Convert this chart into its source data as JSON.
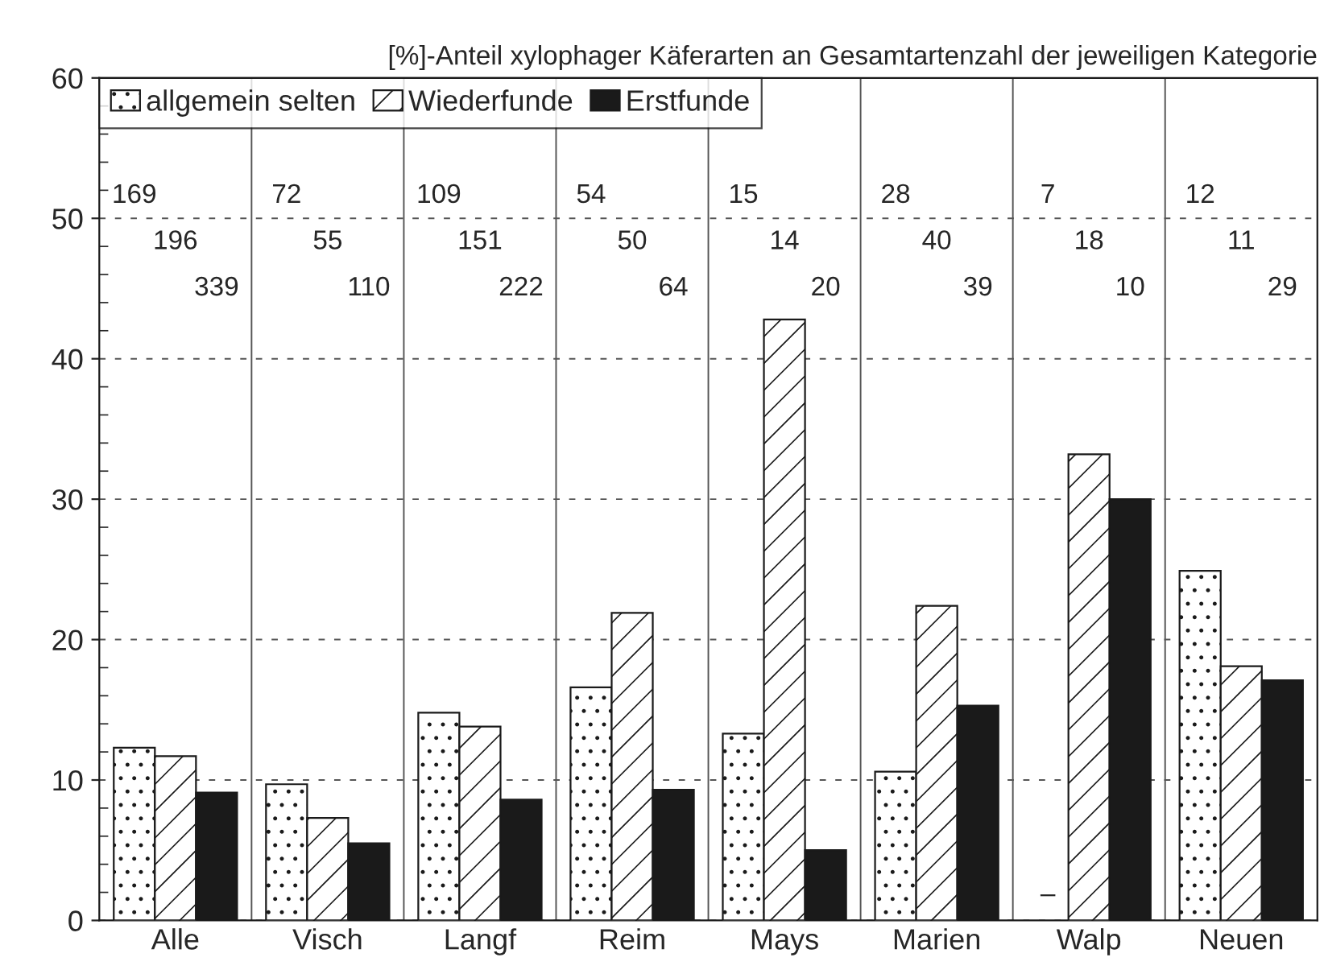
{
  "chart_data": {
    "type": "bar",
    "title": "[%]-Anteil xylophager Käferarten an Gesamtartenzahl der jeweiligen Kategorie",
    "categories": [
      "Alle",
      "Visch",
      "Langf",
      "Reim",
      "Mays",
      "Marien",
      "Walp",
      "Neuen"
    ],
    "series": [
      {
        "name": "allgemein selten",
        "color": "#1a1a1a",
        "values": [
          12.3,
          9.7,
          14.8,
          16.6,
          13.3,
          10.6,
          null,
          24.9
        ]
      },
      {
        "name": "Wiederfunde",
        "color": "#1a1a1a",
        "values": [
          11.7,
          7.3,
          13.8,
          21.9,
          42.8,
          22.4,
          33.2,
          18.1
        ]
      },
      {
        "name": "Erstfunde",
        "color": "#1a1a1a",
        "values": [
          9.1,
          5.5,
          8.6,
          9.3,
          5.0,
          15.3,
          30.0,
          17.1
        ]
      }
    ],
    "annotations": [
      "169",
      "196",
      "339",
      "72",
      "55",
      "110",
      "109",
      "151",
      "222",
      "54",
      "50",
      "64",
      "15",
      "14",
      "20",
      "28",
      "40",
      "39",
      "7",
      "18",
      "10",
      "12",
      "11",
      "29",
      "–"
    ],
    "ylim": [
      0,
      60
    ],
    "yticks": [
      0,
      10,
      20,
      30,
      40,
      50,
      60
    ],
    "grid": true,
    "legend": "top left"
  }
}
